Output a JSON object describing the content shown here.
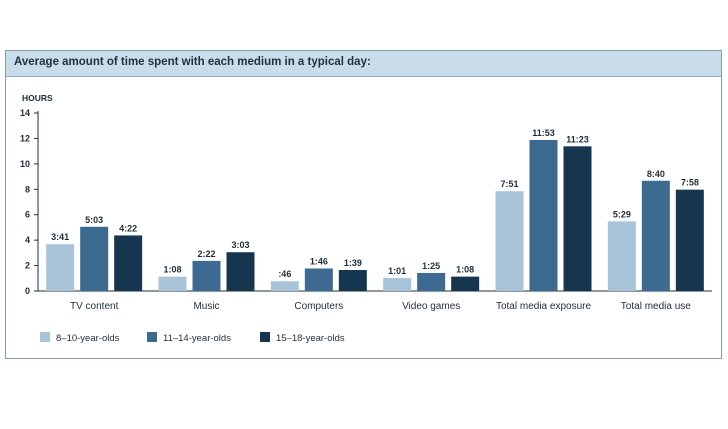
{
  "chart_data": {
    "type": "bar",
    "title": "Average amount of time spent with each medium in a typical day:",
    "ylabel": "HOURS",
    "ylim": [
      0,
      14
    ],
    "yticks": [
      "0",
      "2",
      "4",
      "6",
      "8",
      "10",
      "12",
      "14"
    ],
    "grid": false,
    "legend_position": "bottom-left",
    "categories": [
      "TV content",
      "Music",
      "Computers",
      "Video games",
      "Total media exposure",
      "Total media use"
    ],
    "series": [
      {
        "name": "8–10-year-olds",
        "color": "#a9c4d9",
        "values": [
          3.68,
          1.13,
          0.77,
          1.02,
          7.85,
          5.48
        ],
        "labels": [
          "3:41",
          "1:08",
          ":46",
          "1:01",
          "7:51",
          "5:29"
        ]
      },
      {
        "name": "11–14-year-olds",
        "color": "#3d6a91",
        "values": [
          5.05,
          2.37,
          1.77,
          1.42,
          11.88,
          8.67
        ],
        "labels": [
          "5:03",
          "2:22",
          "1:46",
          "1:25",
          "11:53",
          "8:40"
        ]
      },
      {
        "name": "15–18-year-olds",
        "color": "#16354f",
        "values": [
          4.37,
          3.05,
          1.65,
          1.13,
          11.38,
          7.97
        ],
        "labels": [
          "4:22",
          "3:03",
          "1:39",
          "1:08",
          "11:23",
          "7:58"
        ]
      }
    ]
  }
}
